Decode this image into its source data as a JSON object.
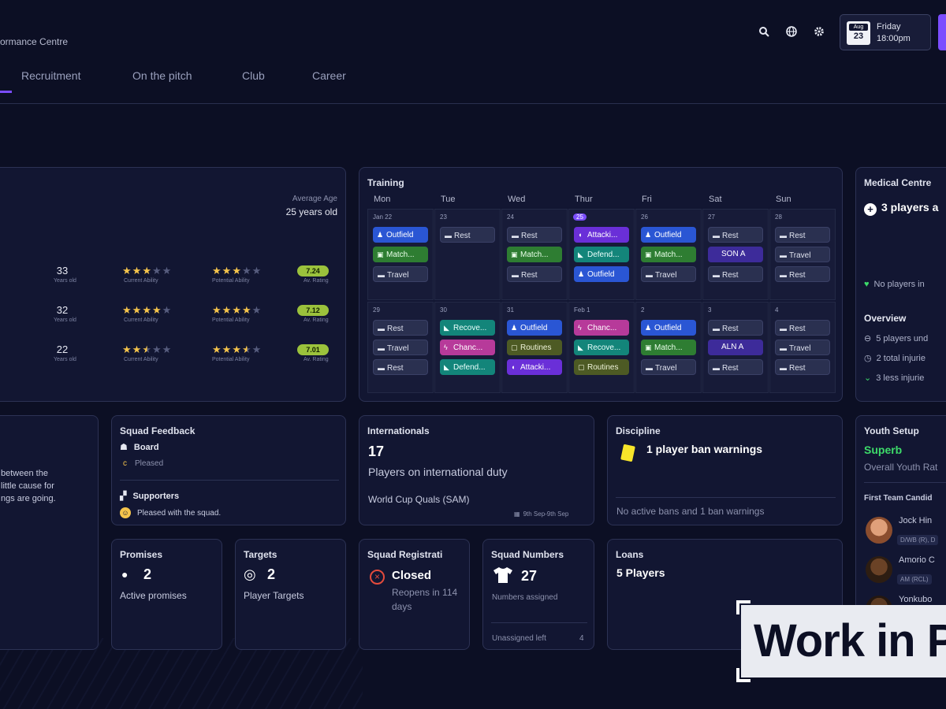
{
  "header": {
    "app_title": "ormance Centre",
    "tabs": [
      "Recruitment",
      "On the pitch",
      "Club",
      "Career"
    ],
    "date": {
      "month": "Aug",
      "day": "23",
      "weekday": "Friday",
      "time": "18:00pm"
    }
  },
  "players": {
    "avg_age_label": "Average Age",
    "avg_age_value": "25 years old",
    "rows": [
      {
        "age": "33",
        "age_label": "Years old",
        "ca_stars": 3,
        "ca_label": "Current Ability",
        "pa_stars": 3,
        "pa_label": "Potential Ability",
        "rating": "7.24",
        "rating_label": "Av. Rating"
      },
      {
        "age": "32",
        "age_label": "Years old",
        "ca_stars": 4,
        "ca_label": "Current Ability",
        "pa_stars": 4,
        "pa_label": "Potential Ability",
        "rating": "7.12",
        "rating_label": "Av. Rating"
      },
      {
        "age": "22",
        "age_label": "Years old",
        "ca_stars": 2.5,
        "ca_label": "Current Ability",
        "pa_stars": 3.5,
        "pa_label": "Potential Ability",
        "rating": "7.01",
        "rating_label": "Av. Rating"
      }
    ]
  },
  "training": {
    "title": "Training",
    "days": [
      "Mon",
      "Tue",
      "Wed",
      "Thur",
      "Fri",
      "Sat",
      "Sun"
    ],
    "week1_dates": [
      "Jan 22",
      "23",
      "24",
      "25",
      "26",
      "27",
      "28"
    ],
    "week2_dates": [
      "29",
      "30",
      "31",
      "Feb 1",
      "2",
      "3",
      "4"
    ],
    "week1": [
      [
        [
          "Outfield",
          "blue"
        ],
        [
          "Match...",
          "green"
        ],
        [
          "Travel",
          "rest"
        ]
      ],
      [
        [
          "Rest",
          "rest"
        ]
      ],
      [
        [
          "Rest",
          "rest"
        ],
        [
          "Match...",
          "green"
        ],
        [
          "Rest",
          "rest"
        ]
      ],
      [
        [
          "Attacki...",
          "purple"
        ],
        [
          "Defend...",
          "teal"
        ],
        [
          "Outfield",
          "blue"
        ]
      ],
      [
        [
          "Outfield",
          "blue"
        ],
        [
          "Match...",
          "green"
        ],
        [
          "Travel",
          "rest"
        ]
      ],
      [
        [
          "Rest",
          "rest"
        ],
        [
          "SON A",
          "violet"
        ],
        [
          "Rest",
          "rest"
        ]
      ],
      [
        [
          "Rest",
          "rest"
        ],
        [
          "Travel",
          "rest"
        ],
        [
          "Rest",
          "rest"
        ]
      ]
    ],
    "week2": [
      [
        [
          "Rest",
          "rest"
        ],
        [
          "Travel",
          "rest"
        ],
        [
          "Rest",
          "rest"
        ]
      ],
      [
        [
          "Recove...",
          "teal"
        ],
        [
          "Chanc...",
          "pink"
        ],
        [
          "Defend...",
          "teal"
        ]
      ],
      [
        [
          "Outfield",
          "blue"
        ],
        [
          "Routines",
          "olive"
        ],
        [
          "Attacki...",
          "purple"
        ]
      ],
      [
        [
          "Chanc...",
          "pink"
        ],
        [
          "Recove...",
          "teal"
        ],
        [
          "Routines",
          "olive"
        ]
      ],
      [
        [
          "Outfield",
          "blue"
        ],
        [
          "Match...",
          "green"
        ],
        [
          "Travel",
          "rest"
        ]
      ],
      [
        [
          "Rest",
          "rest"
        ],
        [
          "ALN A",
          "violet"
        ],
        [
          "Rest",
          "rest"
        ]
      ],
      [
        [
          "Rest",
          "rest"
        ],
        [
          "Travel",
          "rest"
        ],
        [
          "Rest",
          "rest"
        ]
      ]
    ]
  },
  "medical": {
    "title": "Medical Centre",
    "main": "3 players a",
    "no_players": "No players in",
    "overview_title": "Overview",
    "overview": [
      "5 players und",
      "2 total injurie",
      "3 less injurie"
    ]
  },
  "feedback_left": {
    "lines": [
      "between the",
      "little cause for",
      "ngs are going."
    ]
  },
  "squad_feedback": {
    "title": "Squad Feedback",
    "board_label": "Board",
    "board_status": "Pleased",
    "supporters_label": "Supporters",
    "supporters_status": "Pleased with the squad."
  },
  "internationals": {
    "title": "Internationals",
    "count": "17",
    "subtitle": "Players on international duty",
    "competition": "World Cup Quals (SAM)",
    "dates": "9th Sep-9th Sep"
  },
  "discipline": {
    "title": "Discipline",
    "main": "1 player ban warnings",
    "footer": "No active bans and 1 ban warnings"
  },
  "youth": {
    "title": "Youth Setup",
    "rating": "Superb",
    "rating_label": "Overall Youth Rat",
    "candidates_title": "First Team Candid",
    "candidates": [
      {
        "name": "Jock Hin",
        "pos": "D/WB (R), D"
      },
      {
        "name": "Amorio C",
        "pos": "AM (RCL)"
      },
      {
        "name": "Yonkubo",
        "pos": ""
      }
    ]
  },
  "promises": {
    "title": "Promises",
    "count": "2",
    "label": "Active promises"
  },
  "targets": {
    "title": "Targets",
    "count": "2",
    "label": "Player Targets"
  },
  "registration": {
    "title": "Squad Registrati",
    "status": "Closed",
    "detail": "Reopens in 114 days"
  },
  "numbers": {
    "title": "Squad Numbers",
    "count": "27",
    "label": "Numbers assigned",
    "unassigned_label": "Unassigned left",
    "unassigned_value": "4"
  },
  "loans": {
    "title": "Loans",
    "value": "5 Players"
  },
  "watermark": "Work in Pr",
  "colors": {
    "accent": "#7b4dff",
    "rating": "#9bc23c",
    "superb": "#3ddc6a"
  }
}
